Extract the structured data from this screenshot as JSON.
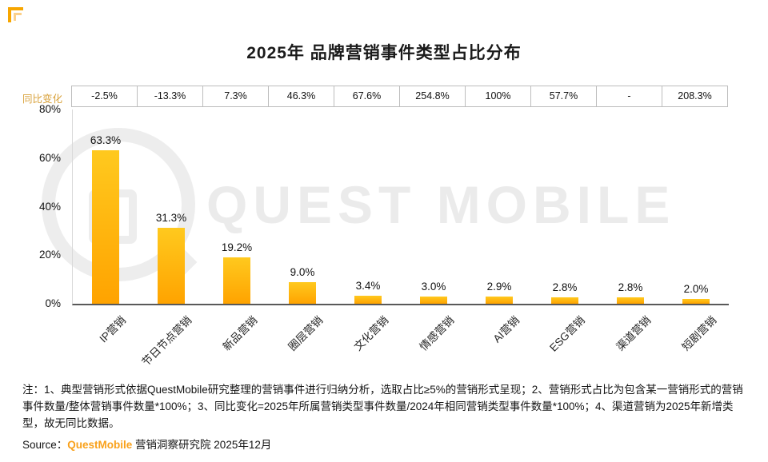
{
  "title": "2025年 品牌营销事件类型占比分布",
  "yoy_axis_label": "同比变化",
  "watermark": "QUEST MOBILE",
  "colors": {
    "bar_top": "#FFC91E",
    "bar_bottom": "#FFA300",
    "brand_orange": "#F9A11B",
    "yoy_label_gold": "#D9A23C"
  },
  "chart_data": {
    "type": "bar",
    "title": "2025年 品牌营销事件类型占比分布",
    "categories": [
      "IP营销",
      "节日节点营销",
      "新品营销",
      "圈层营销",
      "文化营销",
      "情感营销",
      "AI营销",
      "ESG营销",
      "渠道营销",
      "短剧营销"
    ],
    "values": [
      63.3,
      31.3,
      19.2,
      9.0,
      3.4,
      3.0,
      2.9,
      2.8,
      2.8,
      2.0
    ],
    "value_labels": [
      "63.3%",
      "31.3%",
      "19.2%",
      "9.0%",
      "3.4%",
      "3.0%",
      "2.9%",
      "2.8%",
      "2.8%",
      "2.0%"
    ],
    "yoy_change": [
      "-2.5%",
      "-13.3%",
      "7.3%",
      "46.3%",
      "67.6%",
      "254.8%",
      "100%",
      "57.7%",
      "-",
      "208.3%"
    ],
    "yticks": [
      "80%",
      "60%",
      "40%",
      "20%",
      "0%"
    ],
    "ylim": [
      0,
      80
    ],
    "xlabel": "",
    "ylabel": "",
    "legend": "none",
    "grid": "off"
  },
  "note": "注：1、典型营销形式依据QuestMobile研究整理的营销事件进行归纳分析，选取占比≥5%的营销形式呈现；2、营销形式占比为包含某一营销形式的营销事件数量/整体营销事件数量*100%；3、同比变化=2025年所属营销类型事件数量/2024年相同营销类型事件数量*100%；4、渠道营销为2025年新增类型，故无同比数据。",
  "source": {
    "prefix": "Source：",
    "brand": "QuestMobile",
    "suffix": " 营销洞察研究院 2025年12月"
  }
}
